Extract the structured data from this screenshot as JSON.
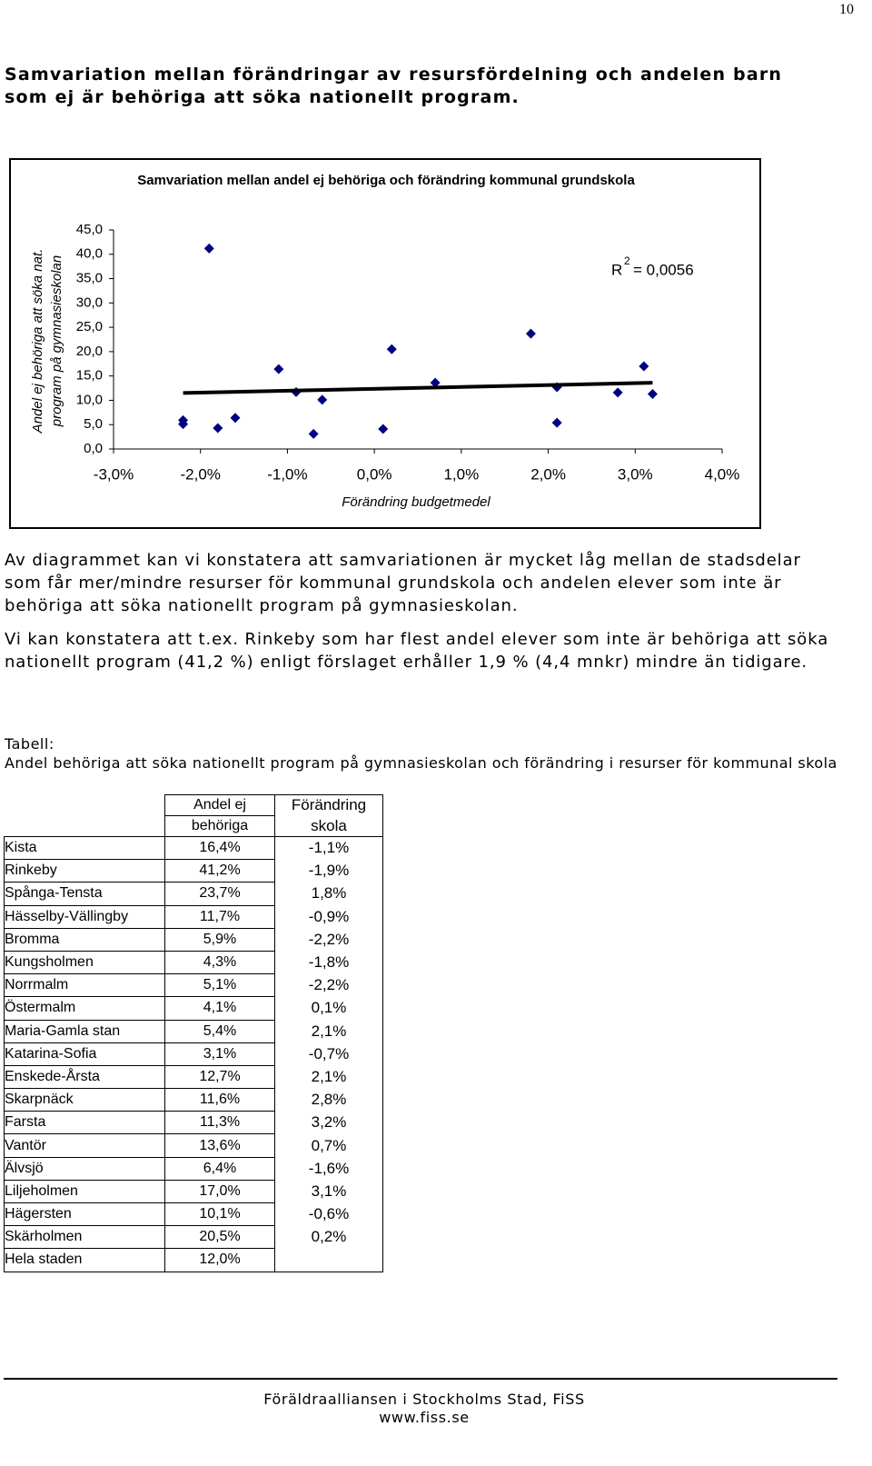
{
  "page_number": "10",
  "heading": "Samvariation mellan förändringar av resursfördelning och andelen barn som ej är behöriga att söka nationellt program.",
  "chart_data": {
    "type": "scatter",
    "title": "Samvariation mellan andel ej behöriga och förändring kommunal grundskola",
    "xlabel": "Förändring budgetmedel",
    "ylabel": [
      "Andel ej behöriga att söka nat.",
      "program på gymnasieskolan"
    ],
    "x": [
      -1.1,
      -1.9,
      1.8,
      -0.9,
      -2.2,
      -1.8,
      -2.2,
      0.1,
      2.1,
      -0.7,
      2.1,
      2.8,
      3.2,
      0.7,
      -1.6,
      3.1,
      -0.6,
      0.2
    ],
    "y": [
      16.4,
      41.2,
      23.7,
      11.7,
      5.9,
      4.3,
      5.1,
      4.1,
      5.4,
      3.1,
      12.7,
      11.6,
      11.3,
      13.6,
      6.4,
      17.0,
      10.1,
      20.5
    ],
    "color": "#000080",
    "xlim": [
      -3,
      4
    ],
    "xticks": [
      {
        "value": -3,
        "label": "-3,0%"
      },
      {
        "value": -2,
        "label": "-2,0%"
      },
      {
        "value": -1,
        "label": "-1,0%"
      },
      {
        "value": 0,
        "label": "0,0%"
      },
      {
        "value": 1,
        "label": "1,0%"
      },
      {
        "value": 2,
        "label": "2,0%"
      },
      {
        "value": 3,
        "label": "3,0%"
      },
      {
        "value": 4,
        "label": "4,0%"
      }
    ],
    "ylim": [
      0,
      45
    ],
    "yticks": [
      {
        "value": 0,
        "label": "0,0"
      },
      {
        "value": 5,
        "label": "5,0"
      },
      {
        "value": 10,
        "label": "10,0"
      },
      {
        "value": 15,
        "label": "15,0"
      },
      {
        "value": 20,
        "label": "20,0"
      },
      {
        "value": 25,
        "label": "25,0"
      },
      {
        "value": 30,
        "label": "30,0"
      },
      {
        "value": 35,
        "label": "35,0"
      },
      {
        "value": 40,
        "label": "40,0"
      },
      {
        "value": 45,
        "label": "45,0"
      }
    ],
    "trendline": {
      "x": [
        -2.2,
        3.2
      ],
      "y": [
        11.5,
        13.6
      ],
      "color": "#000000"
    },
    "r_squared": {
      "symbol": "R",
      "exponent": "2",
      "text": "= 0,0056"
    }
  },
  "paragraphs": [
    "Av diagrammet kan vi konstatera att samvariationen är mycket låg mellan de stadsdelar som får mer/mindre resurser för kommunal grundskola och andelen elever som inte är behöriga att söka nationellt program på gymnasieskolan.",
    "Vi kan konstatera att t.ex. Rinkeby som har flest andel elever som inte är behöriga att söka nationellt program (41,2 %) enligt förslaget erhåller 1,9 % (4,4 mnkr) mindre än tidigare."
  ],
  "table": {
    "label": "Tabell:",
    "caption": "Andel behöriga att söka nationellt program på gymnasieskolan och förändring i resurser för kommunal skola",
    "header": [
      [
        "Andel ej",
        "behöriga"
      ],
      [
        "Förändring",
        "skola"
      ]
    ],
    "rows": [
      [
        "Kista",
        "16,4%",
        "-1,1%"
      ],
      [
        "Rinkeby",
        "41,2%",
        "-1,9%"
      ],
      [
        "Spånga-Tensta",
        "23,7%",
        "1,8%"
      ],
      [
        "Hässelby-Vällingby",
        "11,7%",
        "-0,9%"
      ],
      [
        "Bromma",
        "5,9%",
        "-2,2%"
      ],
      [
        "Kungsholmen",
        "4,3%",
        "-1,8%"
      ],
      [
        "Norrmalm",
        "5,1%",
        "-2,2%"
      ],
      [
        "Östermalm",
        "4,1%",
        "0,1%"
      ],
      [
        "Maria-Gamla stan",
        "5,4%",
        "2,1%"
      ],
      [
        "Katarina-Sofia",
        "3,1%",
        "-0,7%"
      ],
      [
        "Enskede-Årsta",
        "12,7%",
        "2,1%"
      ],
      [
        "Skarpnäck",
        "11,6%",
        "2,8%"
      ],
      [
        "Farsta",
        "11,3%",
        "3,2%"
      ],
      [
        "Vantör",
        "13,6%",
        "0,7%"
      ],
      [
        "Älvsjö",
        "6,4%",
        "-1,6%"
      ],
      [
        "Liljeholmen",
        "17,0%",
        "3,1%"
      ],
      [
        "Hägersten",
        "10,1%",
        "-0,6%"
      ],
      [
        "Skärholmen",
        "20,5%",
        "0,2%"
      ],
      [
        "Hela staden",
        "12,0%"
      ]
    ]
  },
  "footer": [
    "Föräldraalliansen i Stockholms Stad, FiSS",
    "www.fiss.se"
  ]
}
